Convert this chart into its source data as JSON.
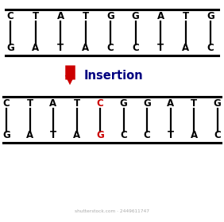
{
  "top_strand1": [
    "C",
    "T",
    "A",
    "T",
    "G",
    "G",
    "A",
    "T",
    "G"
  ],
  "top_strand2": [
    "G",
    "A",
    "T",
    "A",
    "C",
    "C",
    "T",
    "A",
    "C"
  ],
  "bot_strand1": [
    "C",
    "T",
    "A",
    "T",
    "C",
    "G",
    "G",
    "A",
    "T",
    "G"
  ],
  "bot_strand2": [
    "G",
    "A",
    "T",
    "A",
    "G",
    "C",
    "C",
    "T",
    "A",
    "C"
  ],
  "top_colors1": [
    "black",
    "black",
    "black",
    "black",
    "black",
    "black",
    "black",
    "black",
    "black"
  ],
  "top_colors2": [
    "black",
    "black",
    "black",
    "black",
    "black",
    "black",
    "black",
    "black",
    "black"
  ],
  "bot_colors1": [
    "black",
    "black",
    "black",
    "black",
    "#cc0000",
    "black",
    "black",
    "black",
    "black",
    "black"
  ],
  "bot_colors2": [
    "black",
    "black",
    "black",
    "black",
    "#cc0000",
    "black",
    "black",
    "black",
    "black",
    "black"
  ],
  "arrow_color": "#cc0000",
  "insertion_label": "Insertion",
  "insertion_label_color": "#000080",
  "bg_color": "#ffffff",
  "line_color": "black",
  "font_size": 8.5,
  "label_font_size": 10.5,
  "watermark": "shutterstock.com · 2449611747",
  "watermark_color": "#aaaaaa"
}
